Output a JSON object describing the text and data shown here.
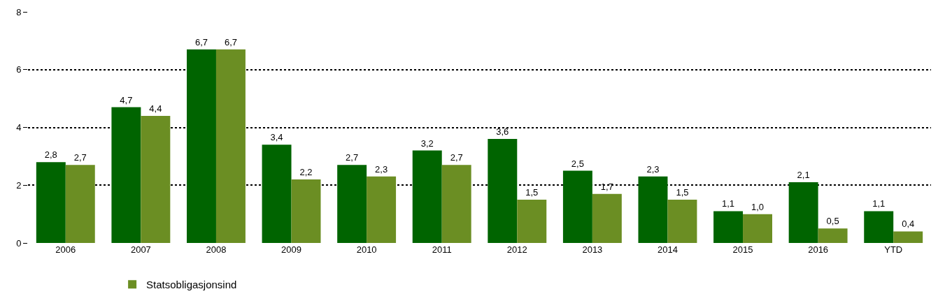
{
  "chart_data": {
    "type": "bar",
    "categories": [
      "2006",
      "2007",
      "2008",
      "2009",
      "2010",
      "2011",
      "2012",
      "2013",
      "2014",
      "2015",
      "2016",
      "YTD"
    ],
    "series": [
      {
        "color": "#006400",
        "values": [
          2.8,
          4.7,
          6.7,
          3.4,
          2.7,
          3.2,
          3.6,
          2.5,
          2.3,
          1.1,
          2.1,
          1.1
        ],
        "value_labels": [
          "2,8",
          "4,7",
          "6,7",
          "3,4",
          "2,7",
          "3,2",
          "3,6",
          "2,5",
          "2,3",
          "1,1",
          "2,1",
          "1,1"
        ]
      },
      {
        "name": "Statsobligasjonsind",
        "color": "#6b8e23",
        "values": [
          2.7,
          4.4,
          6.7,
          2.2,
          2.3,
          2.7,
          1.5,
          1.7,
          1.5,
          1.0,
          0.5,
          0.4
        ],
        "value_labels": [
          "2,7",
          "4,4",
          "6,7",
          "2,2",
          "2,3",
          "2,7",
          "1,5",
          "1,7",
          "1,5",
          "1,0",
          "0,5",
          "0,4"
        ]
      }
    ],
    "ylim": [
      0,
      8
    ],
    "yticks": [
      0,
      2,
      4,
      6,
      8
    ],
    "grid": "y",
    "legend": "bottom left"
  }
}
